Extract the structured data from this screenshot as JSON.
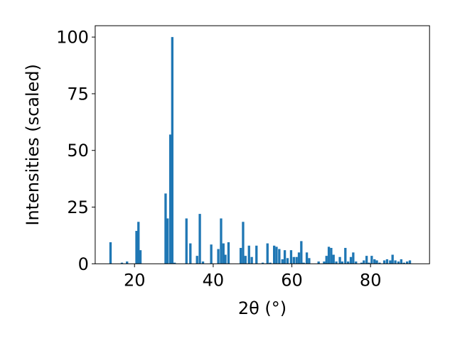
{
  "chart_data": {
    "type": "bar",
    "xlabel": "2θ (°)",
    "ylabel": "Intensities (scaled)",
    "xlim": [
      10,
      95
    ],
    "ylim": [
      0,
      105
    ],
    "xticks": [
      20,
      40,
      60,
      80
    ],
    "yticks": [
      0,
      25,
      50,
      75,
      100
    ],
    "grid": false,
    "bar_color": "#1f77b4",
    "bar_width": 0.6,
    "series": [
      {
        "x": [
          13.9,
          16.8,
          18.1,
          20.5,
          21.0,
          21.5,
          27.9,
          28.4,
          29.1,
          29.6,
          30.2,
          33.2,
          34.2,
          35.9,
          36.6,
          37.4,
          39.5,
          41.3,
          42.0,
          42.6,
          43.1,
          43.9,
          47.0,
          47.6,
          48.2,
          49.1,
          49.8,
          51.0,
          52.6,
          53.8,
          54.5,
          55.5,
          56.1,
          56.8,
          57.6,
          58.2,
          58.9,
          59.8,
          60.5,
          61.2,
          61.8,
          62.4,
          63.0,
          63.8,
          64.4,
          66.8,
          68.2,
          68.8,
          69.4,
          70.0,
          70.6,
          71.3,
          72.2,
          72.8,
          73.6,
          74.3,
          75.0,
          75.6,
          76.3,
          77.7,
          78.3,
          79.0,
          79.6,
          80.3,
          81.0,
          81.6,
          82.3,
          83.5,
          84.2,
          85.0,
          85.6,
          86.3,
          87.1,
          87.8,
          88.5,
          89.3,
          90.0
        ],
        "values": [
          9.5,
          0.5,
          1.0,
          14.5,
          18.5,
          6.0,
          31.0,
          20.0,
          57.0,
          100,
          0.5,
          20.0,
          9.0,
          3.5,
          22.0,
          1.0,
          8.5,
          6.5,
          20.0,
          9.0,
          4.0,
          9.5,
          7.0,
          18.5,
          3.5,
          8.0,
          3.0,
          8.0,
          0.5,
          9.0,
          0.5,
          8.0,
          7.5,
          6.5,
          2.0,
          6.0,
          2.5,
          6.0,
          3.0,
          3.0,
          5.0,
          10.0,
          0.5,
          5.0,
          2.5,
          1.0,
          1.0,
          3.5,
          7.5,
          7.0,
          4.0,
          1.0,
          3.0,
          1.0,
          7.0,
          1.0,
          3.0,
          5.0,
          1.0,
          0.5,
          1.5,
          3.5,
          0.5,
          3.5,
          2.0,
          1.5,
          0.5,
          1.5,
          2.0,
          1.5,
          4.0,
          1.5,
          1.0,
          2.0,
          0.5,
          1.0,
          1.5
        ]
      }
    ]
  }
}
